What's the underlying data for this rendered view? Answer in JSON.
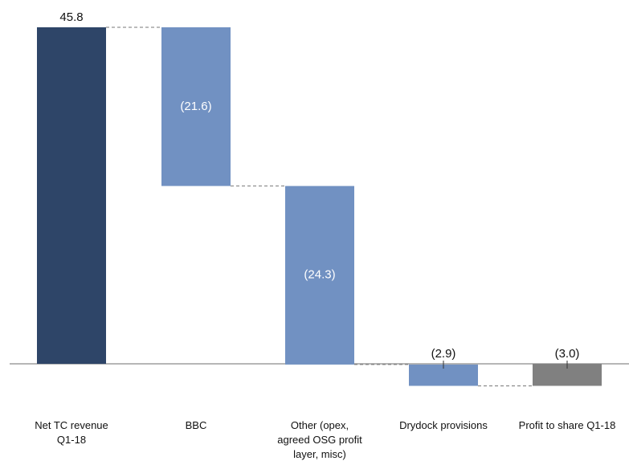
{
  "chart_data": {
    "type": "waterfall",
    "categories": [
      "Net TC revenue Q1-18",
      "BBC",
      "Other (opex, agreed OSG profit layer, misc)",
      "Drydock provisions",
      "Profit to share Q1-18"
    ],
    "values": [
      45.8,
      -21.6,
      -24.3,
      -2.9,
      -3.0
    ],
    "value_labels": [
      "45.8",
      "(21.6)",
      "(24.3)",
      "(2.9)",
      "(3.0)"
    ],
    "colors": [
      "#2e4568",
      "#7191c2",
      "#7191c2",
      "#7191c2",
      "#808080"
    ],
    "ylim": [
      -4,
      47
    ]
  }
}
